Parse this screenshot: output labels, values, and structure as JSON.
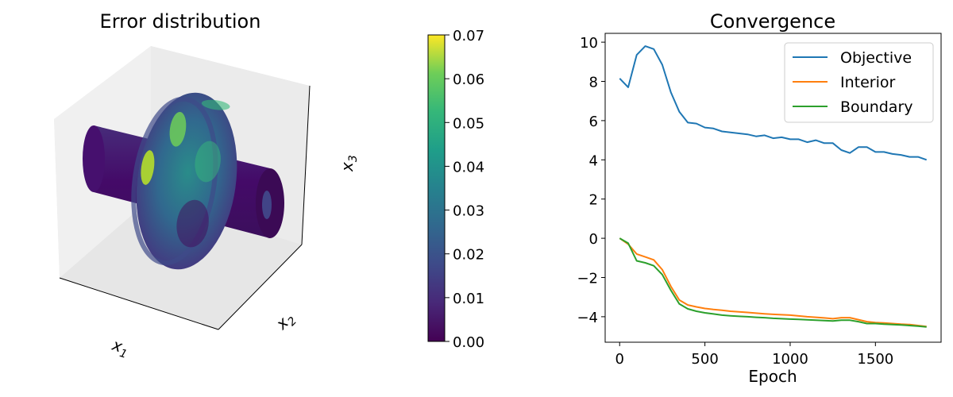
{
  "chart_data": [
    {
      "type": "surface-3d",
      "title": "Error distribution",
      "axis_labels": {
        "x1": "x",
        "x1_sub": "1",
        "x2": "x",
        "x2_sub": "2",
        "x3": "x",
        "x3_sub": "3"
      },
      "colormap": "viridis",
      "colorbar": {
        "range": [
          0,
          0.07
        ],
        "ticks": [
          "0.00",
          "0.01",
          "0.02",
          "0.03",
          "0.04",
          "0.05",
          "0.06",
          "0.07"
        ]
      }
    },
    {
      "type": "line",
      "title": "Convergence",
      "xlabel": "Epoch",
      "ylabel": "",
      "xlim": [
        -85,
        1885
      ],
      "ylim": [
        -5.3,
        10.45
      ],
      "xticks": [
        0,
        500,
        1000,
        1500
      ],
      "yticks": [
        -4,
        -2,
        0,
        2,
        4,
        6,
        8,
        10
      ],
      "grid": false,
      "legend_position": "top-right",
      "x": [
        0,
        50,
        100,
        150,
        200,
        250,
        300,
        350,
        400,
        450,
        500,
        550,
        600,
        650,
        700,
        750,
        800,
        850,
        900,
        950,
        1000,
        1050,
        1100,
        1150,
        1200,
        1250,
        1300,
        1350,
        1400,
        1450,
        1500,
        1550,
        1600,
        1650,
        1700,
        1750,
        1800
      ],
      "series": [
        {
          "name": "Objective",
          "color": "#1f77b4",
          "values": [
            8.15,
            7.7,
            9.35,
            9.8,
            9.65,
            8.85,
            7.45,
            6.45,
            5.9,
            5.85,
            5.65,
            5.6,
            5.45,
            5.4,
            5.35,
            5.3,
            5.2,
            5.25,
            5.1,
            5.15,
            5.05,
            5.05,
            4.9,
            5.0,
            4.85,
            4.85,
            4.5,
            4.35,
            4.65,
            4.65,
            4.4,
            4.4,
            4.3,
            4.25,
            4.15,
            4.15,
            4.0
          ]
        },
        {
          "name": "Interior",
          "color": "#ff7f0e",
          "values": [
            0.0,
            -0.3,
            -0.8,
            -0.95,
            -1.1,
            -1.6,
            -2.45,
            -3.15,
            -3.4,
            -3.5,
            -3.58,
            -3.63,
            -3.67,
            -3.72,
            -3.75,
            -3.78,
            -3.82,
            -3.85,
            -3.88,
            -3.9,
            -3.92,
            -3.96,
            -4.0,
            -4.03,
            -4.06,
            -4.1,
            -4.05,
            -4.05,
            -4.15,
            -4.25,
            -4.3,
            -4.32,
            -4.35,
            -4.38,
            -4.4,
            -4.45,
            -4.5
          ]
        },
        {
          "name": "Boundary",
          "color": "#2ca02c",
          "values": [
            0.0,
            -0.25,
            -1.15,
            -1.25,
            -1.4,
            -1.85,
            -2.65,
            -3.35,
            -3.6,
            -3.72,
            -3.8,
            -3.86,
            -3.92,
            -3.95,
            -3.98,
            -4.0,
            -4.03,
            -4.05,
            -4.08,
            -4.1,
            -4.12,
            -4.14,
            -4.16,
            -4.18,
            -4.2,
            -4.22,
            -4.18,
            -4.18,
            -4.25,
            -4.35,
            -4.35,
            -4.38,
            -4.4,
            -4.42,
            -4.45,
            -4.48,
            -4.52
          ]
        }
      ]
    }
  ]
}
